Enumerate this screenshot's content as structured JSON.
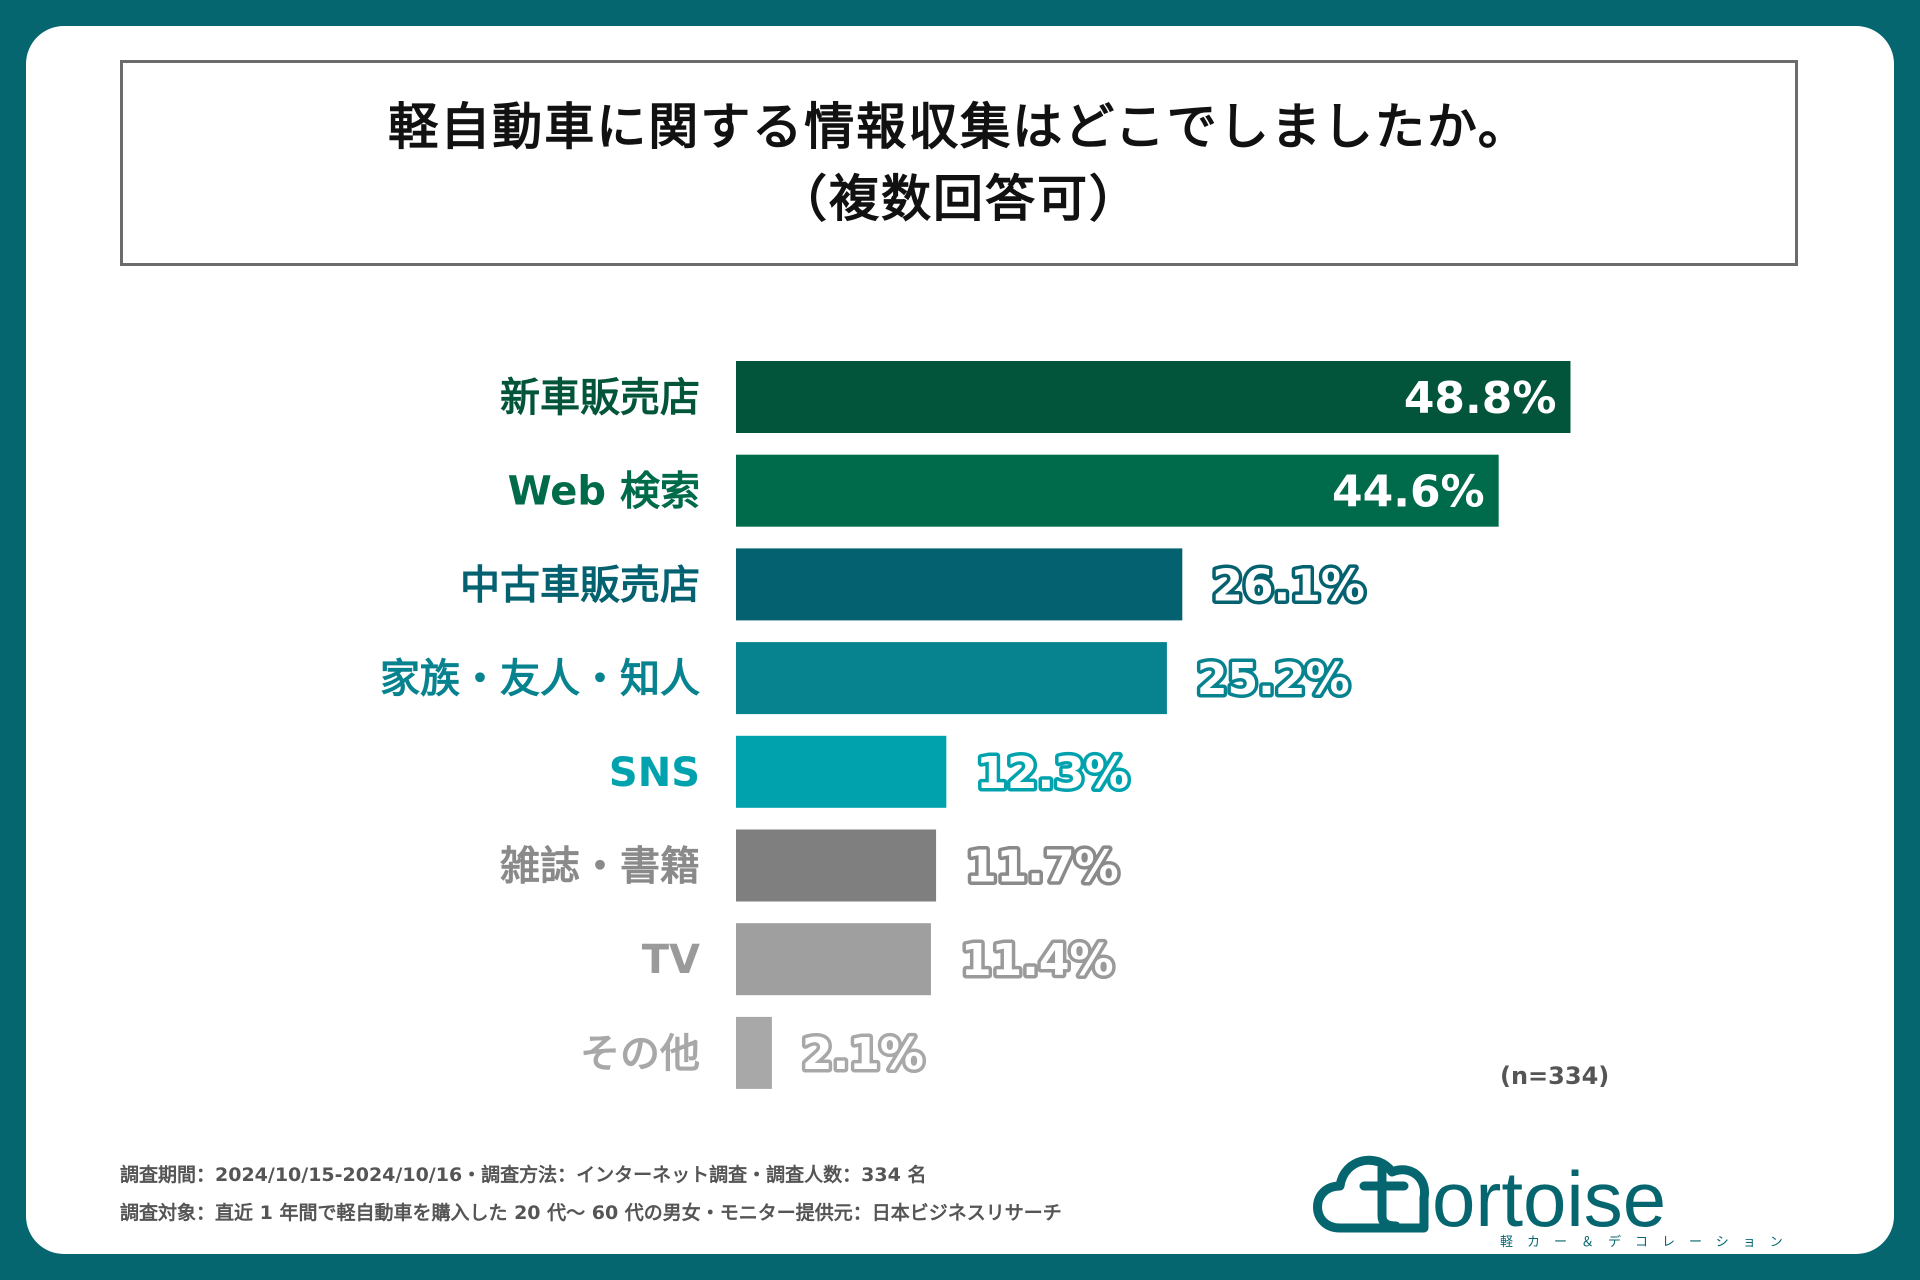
{
  "title": {
    "line1": "軽自動車に関する情報収集はどこでしましたか。",
    "line2": "（複数回答可）"
  },
  "chart_data": {
    "type": "bar",
    "orientation": "horizontal",
    "categories": [
      "新車販売店",
      "Web 検索",
      "中古車販売店",
      "家族・友人・知人",
      "SNS",
      "雑誌・書籍",
      "TV",
      "その他"
    ],
    "values": [
      48.8,
      44.6,
      26.1,
      25.2,
      12.3,
      11.7,
      11.4,
      2.1
    ],
    "value_labels": [
      "48.8%",
      "44.6%",
      "26.1%",
      "25.2%",
      "12.3%",
      "11.7%",
      "11.4%",
      "2.1%"
    ],
    "bar_colors": [
      "#02553a",
      "#006b4a",
      "#04616f",
      "#078390",
      "#00a3ad",
      "#7f7f7f",
      "#9f9f9f",
      "#a8a8a8"
    ],
    "label_colors": [
      "#02553a",
      "#006b4a",
      "#04616f",
      "#078390",
      "#00a3ad",
      "#8a8a8a",
      "#9a9a9a",
      "#a8a8a8"
    ],
    "xlim": [
      0,
      50
    ],
    "unit": "%"
  },
  "n_note": "(n=334)",
  "footer": {
    "line1": "調査期間：2024/10/15-2024/10/16・調査方法：インターネット調査・調査人数：334 名",
    "line2": "調査対象：直近 1 年間で軽自動車を購入した 20 代～ 60 代の男女・モニター提供元：日本ビジネスリサーチ"
  },
  "logo": {
    "wordmark": "ortoise",
    "letter": "t",
    "subtitle": "軽カー＆デコレーション",
    "color": "#06666f"
  }
}
